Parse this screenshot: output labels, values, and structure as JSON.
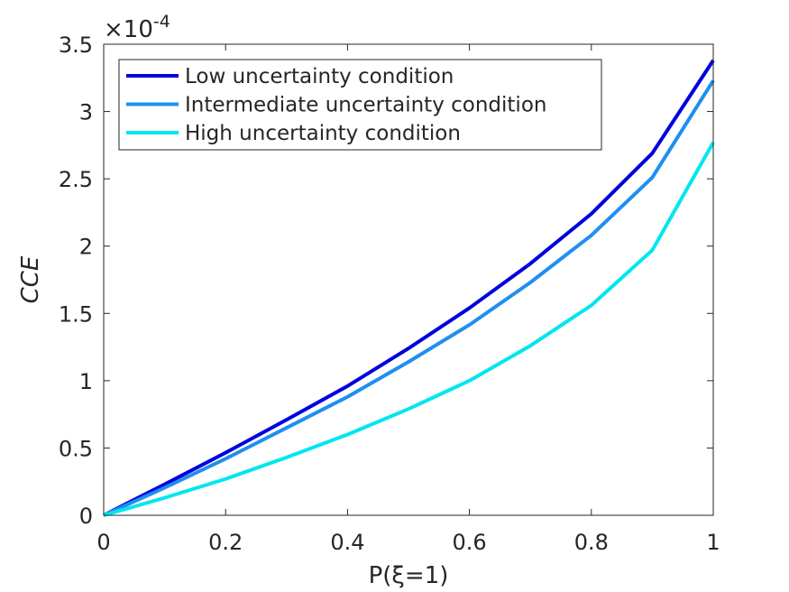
{
  "chart_data": {
    "type": "line",
    "title": "",
    "xlabel": "P(ξ=1)",
    "ylabel": "CCE",
    "y_exponent_prefix": "×10",
    "y_exponent_power": "-4",
    "xlim": [
      0,
      1
    ],
    "ylim": [
      0,
      3.5
    ],
    "x_ticks": [
      0,
      0.2,
      0.4,
      0.6,
      0.8,
      1
    ],
    "x_tick_labels": [
      "0",
      "0.2",
      "0.4",
      "0.6",
      "0.8",
      "1"
    ],
    "y_ticks": [
      0,
      0.5,
      1,
      1.5,
      2,
      2.5,
      3,
      3.5
    ],
    "y_tick_labels": [
      "0",
      "0.5",
      "1",
      "1.5",
      "2",
      "2.5",
      "3",
      "3.5"
    ],
    "grid": false,
    "legend_position": "top-left",
    "x": [
      0,
      0.1,
      0.2,
      0.3,
      0.4,
      0.5,
      0.6,
      0.7,
      0.8,
      0.9,
      1.0
    ],
    "series": [
      {
        "name": "Low uncertainty condition",
        "color": "#0000dd",
        "values": [
          0,
          0.23,
          0.465,
          0.71,
          0.96,
          1.24,
          1.54,
          1.87,
          2.24,
          2.69,
          3.38
        ]
      },
      {
        "name": "Intermediate uncertainty condition",
        "color": "#1f8ff0",
        "values": [
          0,
          0.205,
          0.42,
          0.65,
          0.88,
          1.14,
          1.415,
          1.73,
          2.08,
          2.51,
          3.23
        ]
      },
      {
        "name": "High uncertainty condition",
        "color": "#00e6f0",
        "values": [
          0,
          0.13,
          0.27,
          0.43,
          0.6,
          0.79,
          1.0,
          1.26,
          1.56,
          1.97,
          2.77
        ]
      }
    ]
  }
}
